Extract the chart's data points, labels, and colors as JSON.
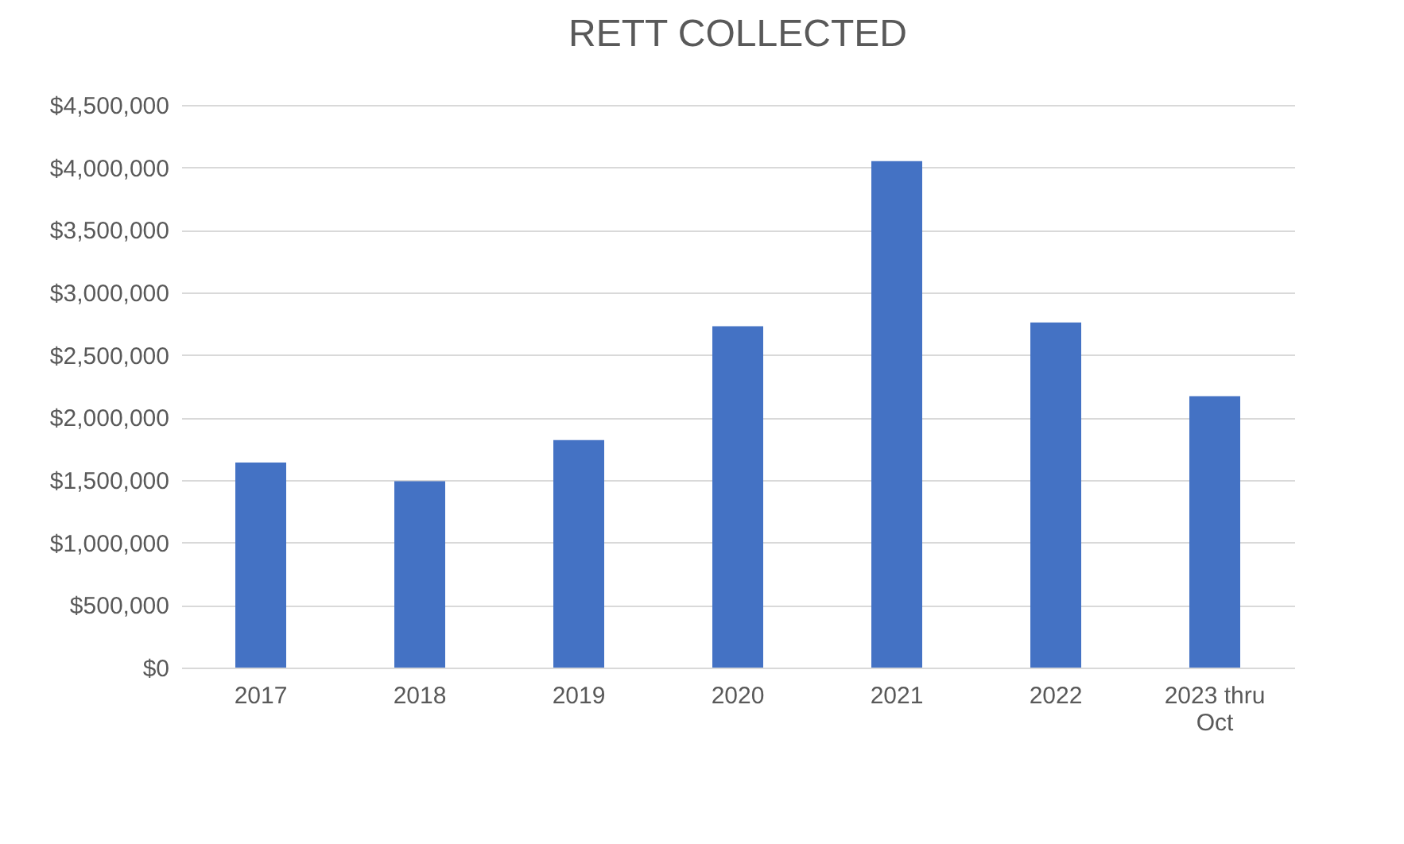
{
  "chart_data": {
    "type": "bar",
    "title": "RETT COLLECTED",
    "categories": [
      "2017",
      "2018",
      "2019",
      "2020",
      "2021",
      "2022",
      "2023 thru Oct"
    ],
    "values": [
      1640000,
      1490000,
      1820000,
      2730000,
      4050000,
      2760000,
      2170000
    ],
    "color": "#4472c4",
    "ylim": [
      0,
      4500000
    ],
    "yticks": [
      {
        "value": 0,
        "label": "$0"
      },
      {
        "value": 500000,
        "label": "$500,000"
      },
      {
        "value": 1000000,
        "label": "$1,000,000"
      },
      {
        "value": 1500000,
        "label": "$1,500,000"
      },
      {
        "value": 2000000,
        "label": "$2,000,000"
      },
      {
        "value": 2500000,
        "label": "$2,500,000"
      },
      {
        "value": 3000000,
        "label": "$3,000,000"
      },
      {
        "value": 3500000,
        "label": "$3,500,000"
      },
      {
        "value": 4000000,
        "label": "$4,000,000"
      },
      {
        "value": 4500000,
        "label": "$4,500,000"
      }
    ],
    "grid": "y"
  }
}
